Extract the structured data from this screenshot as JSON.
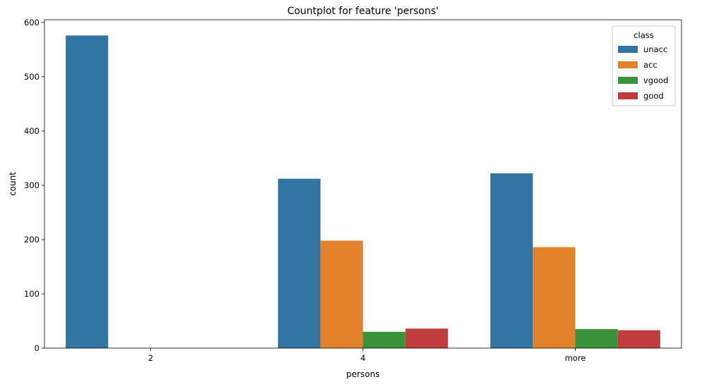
{
  "chart_data": {
    "type": "bar",
    "title": "Countplot for feature 'persons'",
    "xlabel": "persons",
    "ylabel": "count",
    "categories": [
      "2",
      "4",
      "more"
    ],
    "ylim": [
      0,
      605
    ],
    "yticks": [
      0,
      100,
      200,
      300,
      400,
      500,
      600
    ],
    "grid": false,
    "legend": {
      "title": "class",
      "placement": "top-right"
    },
    "series": [
      {
        "name": "unacc",
        "color": "#3274a1",
        "values": [
          576,
          312,
          322
        ]
      },
      {
        "name": "acc",
        "color": "#e1812c",
        "values": [
          0,
          198,
          186
        ]
      },
      {
        "name": "vgood",
        "color": "#3a923a",
        "values": [
          0,
          30,
          35
        ]
      },
      {
        "name": "good",
        "color": "#c03d3e",
        "values": [
          0,
          36,
          33
        ]
      }
    ]
  }
}
